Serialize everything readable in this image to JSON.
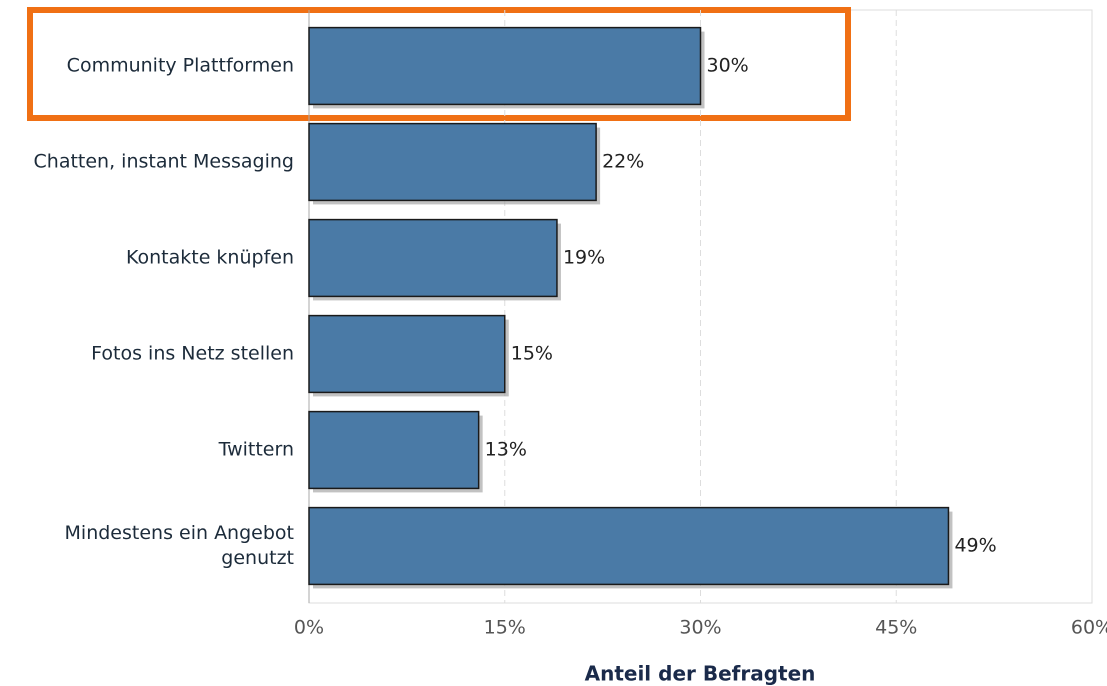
{
  "chart_data": {
    "type": "bar",
    "orientation": "horizontal",
    "categories": [
      "Community Plattformen",
      "Chatten, instant Messaging",
      "Kontakte knüpfen",
      "Fotos ins Netz stellen",
      "Twittern",
      "Mindestens ein Angebot genutzt"
    ],
    "values": [
      30,
      22,
      19,
      15,
      13,
      49
    ],
    "value_labels": [
      "30%",
      "22%",
      "19%",
      "15%",
      "13%",
      "49%"
    ],
    "color": "#4a7aa6",
    "xlim": [
      0,
      60
    ],
    "xticks": [
      {
        "value": 0,
        "label": "0%"
      },
      {
        "value": 15,
        "label": "15%"
      },
      {
        "value": 30,
        "label": "30%"
      },
      {
        "value": 45,
        "label": "45%"
      },
      {
        "value": 60,
        "label": "60%"
      }
    ],
    "xlabel": "Anteil der Befragten",
    "grid": true
  }
}
